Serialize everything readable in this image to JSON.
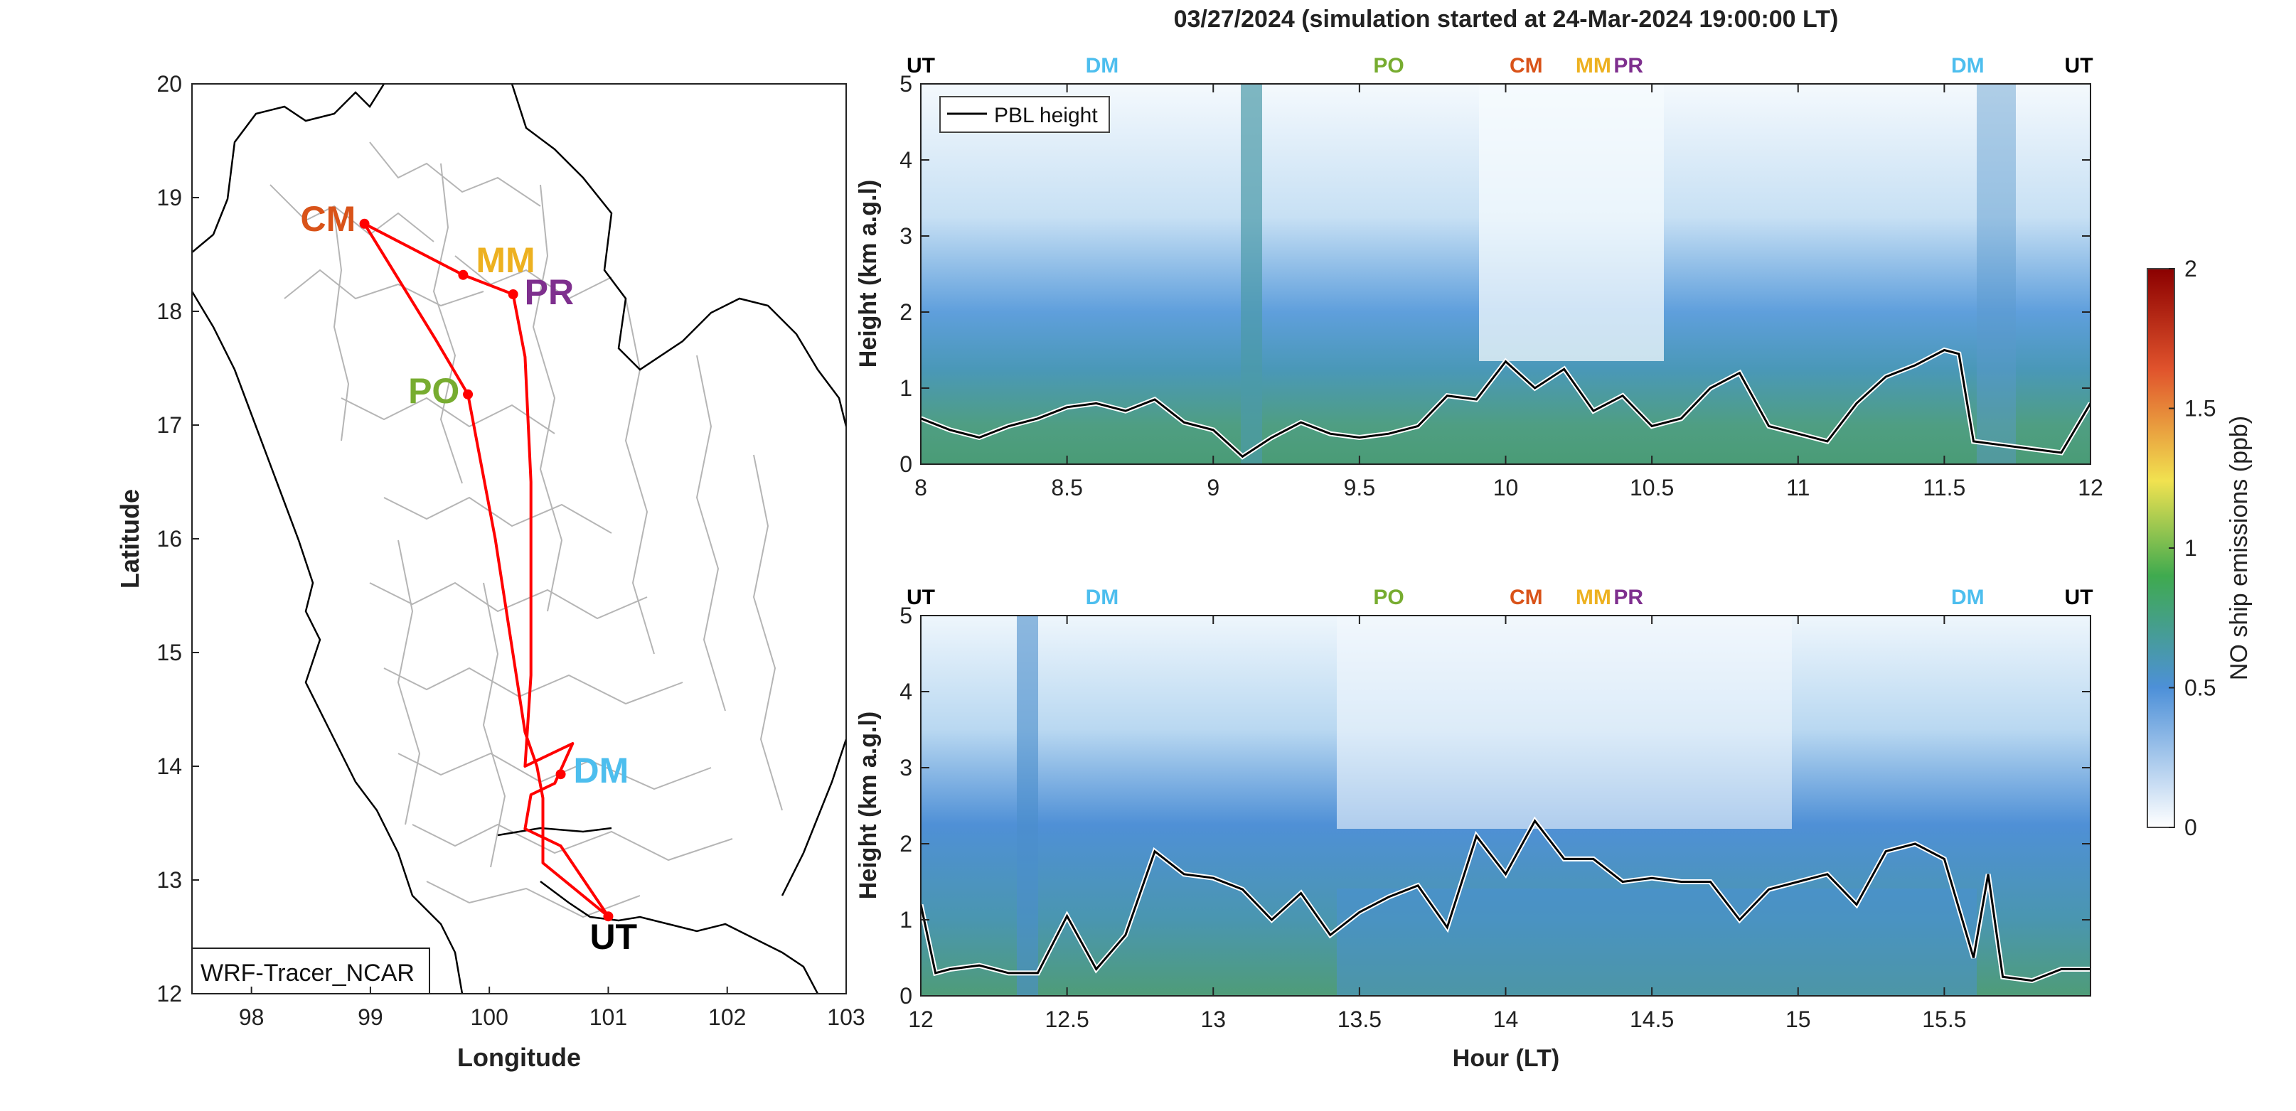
{
  "figure": {
    "title": "03/27/2024 (simulation started at 24-Mar-2024 19:00:00 LT)"
  },
  "chart_data": [
    {
      "type": "map",
      "xlabel": "Longitude",
      "ylabel": "Latitude",
      "xlim": [
        97.5,
        103
      ],
      "ylim": [
        12,
        20
      ],
      "xticks": [
        98,
        99,
        100,
        101,
        102,
        103
      ],
      "yticks": [
        12,
        13,
        14,
        15,
        16,
        17,
        18,
        19,
        20
      ],
      "annotation": "WRF-Tracer_NCAR",
      "route_color": "#ff0000",
      "sites": [
        {
          "name": "CM",
          "lon": 98.95,
          "lat": 18.77,
          "color": "#d95319"
        },
        {
          "name": "MM",
          "lon": 99.78,
          "lat": 18.32,
          "color": "#edb120"
        },
        {
          "name": "PR",
          "lon": 100.2,
          "lat": 18.15,
          "color": "#7e2f8e"
        },
        {
          "name": "PO",
          "lon": 99.82,
          "lat": 17.27,
          "color": "#77ac30"
        },
        {
          "name": "DM",
          "lon": 100.6,
          "lat": 13.93,
          "color": "#4dbeee"
        },
        {
          "name": "UT",
          "lon": 101.0,
          "lat": 12.68,
          "color": "#000000"
        }
      ],
      "route": [
        [
          101.0,
          12.68
        ],
        [
          100.45,
          13.15
        ],
        [
          100.45,
          13.72
        ],
        [
          100.4,
          14.0
        ],
        [
          100.3,
          14.3
        ],
        [
          100.05,
          16.0
        ],
        [
          99.82,
          17.27
        ],
        [
          99.55,
          17.75
        ],
        [
          98.95,
          18.77
        ],
        [
          99.78,
          18.32
        ],
        [
          100.2,
          18.15
        ],
        [
          100.3,
          17.6
        ],
        [
          100.35,
          16.5
        ],
        [
          100.35,
          14.8
        ],
        [
          100.3,
          14.0
        ],
        [
          100.7,
          14.2
        ],
        [
          100.55,
          13.85
        ],
        [
          100.35,
          13.75
        ],
        [
          100.3,
          13.45
        ],
        [
          100.6,
          13.3
        ],
        [
          101.0,
          12.68
        ]
      ]
    },
    {
      "type": "heatmap",
      "xlabel": "",
      "ylabel": "Height (km a.g.l)",
      "xlim": [
        8,
        12
      ],
      "ylim": [
        0,
        5
      ],
      "xticks": [
        "8",
        "8.5",
        "9",
        "9.5",
        "10",
        "10.5",
        "11",
        "11.5",
        "12"
      ],
      "yticks": [
        "0",
        "1",
        "2",
        "3",
        "4",
        "5"
      ],
      "legend": {
        "entries": [
          "PBL height"
        ],
        "position": "top-left"
      },
      "top_markers": [
        {
          "label": "UT",
          "x": 8.0,
          "color": "#000000"
        },
        {
          "label": "DM",
          "x": 8.62,
          "color": "#4dbeee"
        },
        {
          "label": "PO",
          "x": 9.6,
          "color": "#77ac30"
        },
        {
          "label": "CM",
          "x": 10.07,
          "color": "#d95319"
        },
        {
          "label": "MM",
          "x": 10.3,
          "color": "#edb120"
        },
        {
          "label": "PR",
          "x": 10.42,
          "color": "#7e2f8e"
        },
        {
          "label": "DM",
          "x": 11.58,
          "color": "#4dbeee"
        },
        {
          "label": "UT",
          "x": 11.96,
          "color": "#000000"
        }
      ],
      "pbl_height": {
        "x": [
          8.0,
          8.1,
          8.2,
          8.3,
          8.4,
          8.5,
          8.6,
          8.7,
          8.8,
          8.9,
          9.0,
          9.1,
          9.2,
          9.3,
          9.4,
          9.5,
          9.6,
          9.7,
          9.8,
          9.9,
          10.0,
          10.1,
          10.2,
          10.3,
          10.4,
          10.5,
          10.6,
          10.7,
          10.8,
          10.9,
          11.0,
          11.1,
          11.2,
          11.3,
          11.4,
          11.5,
          11.55,
          11.6,
          11.7,
          11.8,
          11.9,
          12.0
        ],
        "y": [
          0.6,
          0.45,
          0.35,
          0.5,
          0.6,
          0.75,
          0.8,
          0.7,
          0.85,
          0.55,
          0.45,
          0.1,
          0.35,
          0.55,
          0.4,
          0.35,
          0.4,
          0.5,
          0.9,
          0.85,
          1.35,
          1.0,
          1.25,
          0.7,
          0.9,
          0.5,
          0.6,
          1.0,
          1.2,
          0.5,
          0.4,
          0.3,
          0.8,
          1.15,
          1.3,
          1.5,
          1.45,
          0.3,
          0.25,
          0.2,
          0.15,
          0.8
        ]
      }
    },
    {
      "type": "heatmap",
      "xlabel": "Hour (LT)",
      "ylabel": "Height (km a.g.l)",
      "xlim": [
        12,
        16
      ],
      "ylim": [
        0,
        5
      ],
      "xticks": [
        "12",
        "12.5",
        "13",
        "13.5",
        "14",
        "14.5",
        "15",
        "15.5"
      ],
      "yticks": [
        "0",
        "1",
        "2",
        "3",
        "4",
        "5"
      ],
      "top_markers": [
        {
          "label": "UT",
          "x": 12.0,
          "color": "#000000"
        },
        {
          "label": "DM",
          "x": 12.62,
          "color": "#4dbeee"
        },
        {
          "label": "PO",
          "x": 13.6,
          "color": "#77ac30"
        },
        {
          "label": "CM",
          "x": 14.07,
          "color": "#d95319"
        },
        {
          "label": "MM",
          "x": 14.3,
          "color": "#edb120"
        },
        {
          "label": "PR",
          "x": 14.42,
          "color": "#7e2f8e"
        },
        {
          "label": "DM",
          "x": 15.58,
          "color": "#4dbeee"
        },
        {
          "label": "UT",
          "x": 15.96,
          "color": "#000000"
        }
      ],
      "pbl_height": {
        "x": [
          12.0,
          12.05,
          12.1,
          12.2,
          12.3,
          12.4,
          12.5,
          12.6,
          12.7,
          12.8,
          12.9,
          13.0,
          13.1,
          13.2,
          13.3,
          13.4,
          13.5,
          13.6,
          13.7,
          13.8,
          13.9,
          14.0,
          14.1,
          14.2,
          14.3,
          14.4,
          14.5,
          14.6,
          14.7,
          14.8,
          14.9,
          15.0,
          15.1,
          15.2,
          15.3,
          15.4,
          15.5,
          15.6,
          15.65,
          15.7,
          15.8,
          15.9,
          16.0
        ],
        "y": [
          1.2,
          0.3,
          0.35,
          0.4,
          0.3,
          0.3,
          1.05,
          0.35,
          0.8,
          1.9,
          1.6,
          1.55,
          1.4,
          1.0,
          1.35,
          0.8,
          1.1,
          1.3,
          1.45,
          0.9,
          2.1,
          1.6,
          2.3,
          1.8,
          1.8,
          1.5,
          1.55,
          1.5,
          1.5,
          1.0,
          1.4,
          1.5,
          1.6,
          1.2,
          1.9,
          2.0,
          1.8,
          0.5,
          1.6,
          0.25,
          0.2,
          0.35,
          0.35
        ]
      }
    }
  ],
  "colorbar": {
    "label": "NO ship emissions (ppb)",
    "ticks": [
      "0",
      "0.5",
      "1",
      "1.5",
      "2"
    ],
    "range": [
      0,
      2
    ],
    "colors": [
      "#ffffff",
      "#4d90d8",
      "#3faa4f",
      "#f1e250",
      "#e0532c",
      "#8b0000"
    ]
  }
}
